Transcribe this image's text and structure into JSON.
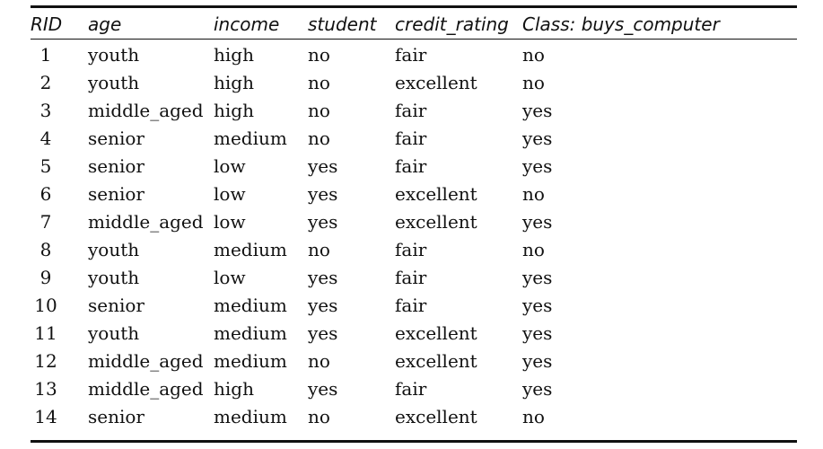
{
  "table": {
    "headers": {
      "rid": "RID",
      "age": "age",
      "income": "income",
      "student": "student",
      "credit_rating": "credit_rating",
      "class": "Class: buys_computer"
    },
    "rows": [
      {
        "rid": "1",
        "age": "youth",
        "income": "high",
        "student": "no",
        "credit_rating": "fair",
        "class": "no"
      },
      {
        "rid": "2",
        "age": "youth",
        "income": "high",
        "student": "no",
        "credit_rating": "excellent",
        "class": "no"
      },
      {
        "rid": "3",
        "age": "middle_aged",
        "income": "high",
        "student": "no",
        "credit_rating": "fair",
        "class": "yes"
      },
      {
        "rid": "4",
        "age": "senior",
        "income": "medium",
        "student": "no",
        "credit_rating": "fair",
        "class": "yes"
      },
      {
        "rid": "5",
        "age": "senior",
        "income": "low",
        "student": "yes",
        "credit_rating": "fair",
        "class": "yes"
      },
      {
        "rid": "6",
        "age": "senior",
        "income": "low",
        "student": "yes",
        "credit_rating": "excellent",
        "class": "no"
      },
      {
        "rid": "7",
        "age": "middle_aged",
        "income": "low",
        "student": "yes",
        "credit_rating": "excellent",
        "class": "yes"
      },
      {
        "rid": "8",
        "age": "youth",
        "income": "medium",
        "student": "no",
        "credit_rating": "fair",
        "class": "no"
      },
      {
        "rid": "9",
        "age": "youth",
        "income": "low",
        "student": "yes",
        "credit_rating": "fair",
        "class": "yes"
      },
      {
        "rid": "10",
        "age": "senior",
        "income": "medium",
        "student": "yes",
        "credit_rating": "fair",
        "class": "yes"
      },
      {
        "rid": "11",
        "age": "youth",
        "income": "medium",
        "student": "yes",
        "credit_rating": "excellent",
        "class": "yes"
      },
      {
        "rid": "12",
        "age": "middle_aged",
        "income": "medium",
        "student": "no",
        "credit_rating": "excellent",
        "class": "yes"
      },
      {
        "rid": "13",
        "age": "middle_aged",
        "income": "high",
        "student": "yes",
        "credit_rating": "fair",
        "class": "yes"
      },
      {
        "rid": "14",
        "age": "senior",
        "income": "medium",
        "student": "no",
        "credit_rating": "excellent",
        "class": "no"
      }
    ]
  }
}
